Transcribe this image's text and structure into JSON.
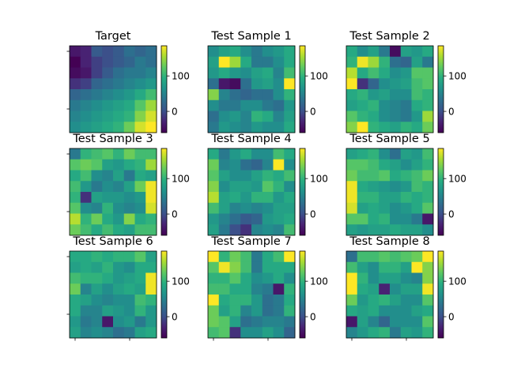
{
  "figure": {
    "colormap": "viridis",
    "colorbar_ticks": [
      "0",
      "100"
    ],
    "colorbar_range": [
      -60,
      185
    ]
  },
  "chart_data": [
    {
      "type": "heatmap",
      "title": "Target",
      "vmin": -60,
      "vmax": 185,
      "values": [
        [
          -40,
          -30,
          10,
          0,
          10,
          30,
          20,
          30
        ],
        [
          -60,
          -30,
          -10,
          0,
          10,
          20,
          40,
          30
        ],
        [
          -50,
          -40,
          -10,
          10,
          30,
          40,
          40,
          50
        ],
        [
          -20,
          -10,
          20,
          30,
          40,
          50,
          60,
          70
        ],
        [
          20,
          30,
          40,
          50,
          60,
          70,
          90,
          110
        ],
        [
          40,
          50,
          60,
          70,
          80,
          90,
          120,
          150
        ],
        [
          50,
          60,
          70,
          80,
          90,
          100,
          140,
          170
        ],
        [
          60,
          70,
          80,
          90,
          100,
          130,
          170,
          185
        ]
      ]
    },
    {
      "type": "heatmap",
      "title": "Test Sample 1",
      "vmin": -60,
      "vmax": 185,
      "values": [
        [
          60,
          80,
          90,
          60,
          40,
          60,
          70,
          90
        ],
        [
          80,
          185,
          150,
          90,
          40,
          40,
          60,
          90
        ],
        [
          70,
          90,
          70,
          60,
          80,
          90,
          50,
          110
        ],
        [
          30,
          -40,
          -50,
          30,
          70,
          80,
          60,
          185
        ],
        [
          140,
          50,
          30,
          20,
          30,
          30,
          60,
          100
        ],
        [
          60,
          40,
          40,
          60,
          60,
          40,
          30,
          70
        ],
        [
          30,
          60,
          70,
          50,
          100,
          90,
          50,
          80
        ],
        [
          40,
          70,
          60,
          50,
          70,
          60,
          60,
          90
        ]
      ]
    },
    {
      "type": "heatmap",
      "title": "Test Sample 2",
      "vmin": -60,
      "vmax": 185,
      "values": [
        [
          90,
          60,
          80,
          40,
          -50,
          80,
          70,
          90
        ],
        [
          100,
          180,
          150,
          100,
          30,
          20,
          80,
          40
        ],
        [
          160,
          90,
          110,
          90,
          60,
          70,
          120,
          120
        ],
        [
          185,
          -20,
          20,
          60,
          70,
          80,
          110,
          120
        ],
        [
          90,
          100,
          70,
          80,
          60,
          60,
          110,
          100
        ],
        [
          80,
          90,
          100,
          60,
          50,
          40,
          90,
          100
        ],
        [
          120,
          100,
          90,
          60,
          50,
          40,
          70,
          150
        ],
        [
          140,
          185,
          100,
          90,
          80,
          100,
          90,
          130
        ]
      ]
    },
    {
      "type": "heatmap",
      "title": "Test Sample 3",
      "vmin": -60,
      "vmax": 185,
      "values": [
        [
          40,
          100,
          110,
          120,
          100,
          130,
          110,
          110
        ],
        [
          120,
          130,
          120,
          80,
          70,
          90,
          100,
          150
        ],
        [
          90,
          110,
          60,
          50,
          80,
          40,
          90,
          80
        ],
        [
          110,
          70,
          40,
          60,
          50,
          80,
          130,
          180
        ],
        [
          100,
          -20,
          80,
          70,
          70,
          60,
          70,
          180
        ],
        [
          120,
          60,
          50,
          100,
          60,
          50,
          60,
          170
        ],
        [
          160,
          100,
          130,
          90,
          70,
          140,
          90,
          100
        ],
        [
          130,
          110,
          90,
          110,
          90,
          80,
          110,
          110
        ]
      ]
    },
    {
      "type": "heatmap",
      "title": "Test Sample 4",
      "vmin": -60,
      "vmax": 185,
      "values": [
        [
          90,
          40,
          70,
          90,
          60,
          60,
          110,
          90
        ],
        [
          130,
          50,
          60,
          30,
          20,
          50,
          185,
          60
        ],
        [
          120,
          80,
          60,
          60,
          80,
          100,
          90,
          110
        ],
        [
          140,
          60,
          80,
          80,
          70,
          120,
          100,
          60
        ],
        [
          160,
          80,
          90,
          70,
          100,
          100,
          70,
          90
        ],
        [
          110,
          80,
          50,
          60,
          50,
          60,
          80,
          80
        ],
        [
          70,
          50,
          30,
          10,
          20,
          70,
          80,
          90
        ],
        [
          80,
          40,
          0,
          -20,
          50,
          60,
          50,
          110
        ]
      ]
    },
    {
      "type": "heatmap",
      "title": "Test Sample 5",
      "vmin": -60,
      "vmax": 185,
      "values": [
        [
          80,
          90,
          100,
          60,
          30,
          80,
          70,
          110
        ],
        [
          120,
          120,
          110,
          90,
          80,
          60,
          80,
          100
        ],
        [
          130,
          110,
          110,
          120,
          90,
          100,
          110,
          130
        ],
        [
          180,
          90,
          80,
          70,
          60,
          70,
          110,
          100
        ],
        [
          180,
          100,
          100,
          80,
          80,
          100,
          90,
          100
        ],
        [
          170,
          80,
          90,
          80,
          60,
          70,
          90,
          120
        ],
        [
          120,
          120,
          90,
          100,
          60,
          60,
          40,
          -40
        ],
        [
          80,
          70,
          80,
          80,
          90,
          80,
          80,
          60
        ]
      ]
    },
    {
      "type": "heatmap",
      "title": "Test Sample 6",
      "vmin": -60,
      "vmax": 185,
      "values": [
        [
          90,
          90,
          100,
          90,
          100,
          100,
          120,
          80
        ],
        [
          80,
          90,
          80,
          100,
          70,
          60,
          90,
          90
        ],
        [
          110,
          100,
          100,
          90,
          70,
          80,
          90,
          180
        ],
        [
          130,
          50,
          80,
          60,
          80,
          90,
          80,
          180
        ],
        [
          90,
          80,
          60,
          50,
          60,
          60,
          110,
          100
        ],
        [
          90,
          50,
          50,
          80,
          70,
          60,
          100,
          70
        ],
        [
          70,
          40,
          50,
          -40,
          60,
          70,
          40,
          70
        ],
        [
          80,
          50,
          60,
          50,
          30,
          40,
          80,
          90
        ]
      ]
    },
    {
      "type": "heatmap",
      "title": "Test Sample 7",
      "vmin": -60,
      "vmax": 185,
      "values": [
        [
          185,
          100,
          130,
          110,
          40,
          90,
          110,
          185
        ],
        [
          120,
          180,
          140,
          110,
          40,
          90,
          90,
          90
        ],
        [
          100,
          100,
          120,
          90,
          60,
          70,
          90,
          60
        ],
        [
          110,
          110,
          90,
          90,
          50,
          40,
          -40,
          100
        ],
        [
          185,
          90,
          100,
          100,
          70,
          30,
          40,
          90
        ],
        [
          130,
          80,
          100,
          50,
          70,
          30,
          40,
          100
        ],
        [
          130,
          120,
          80,
          30,
          40,
          50,
          50,
          40
        ],
        [
          110,
          120,
          -20,
          60,
          60,
          80,
          60,
          20
        ]
      ]
    },
    {
      "type": "heatmap",
      "title": "Test Sample 8",
      "vmin": -60,
      "vmax": 185,
      "values": [
        [
          30,
          110,
          110,
          120,
          110,
          120,
          130,
          185
        ],
        [
          110,
          80,
          60,
          100,
          100,
          80,
          185,
          140
        ],
        [
          185,
          100,
          60,
          80,
          80,
          60,
          50,
          140
        ],
        [
          185,
          90,
          80,
          -30,
          60,
          80,
          80,
          180
        ],
        [
          130,
          70,
          90,
          100,
          80,
          60,
          60,
          120
        ],
        [
          90,
          80,
          90,
          60,
          60,
          60,
          80,
          90
        ],
        [
          -40,
          80,
          50,
          20,
          60,
          60,
          60,
          120
        ],
        [
          50,
          70,
          90,
          100,
          40,
          80,
          70,
          100
        ]
      ]
    }
  ]
}
